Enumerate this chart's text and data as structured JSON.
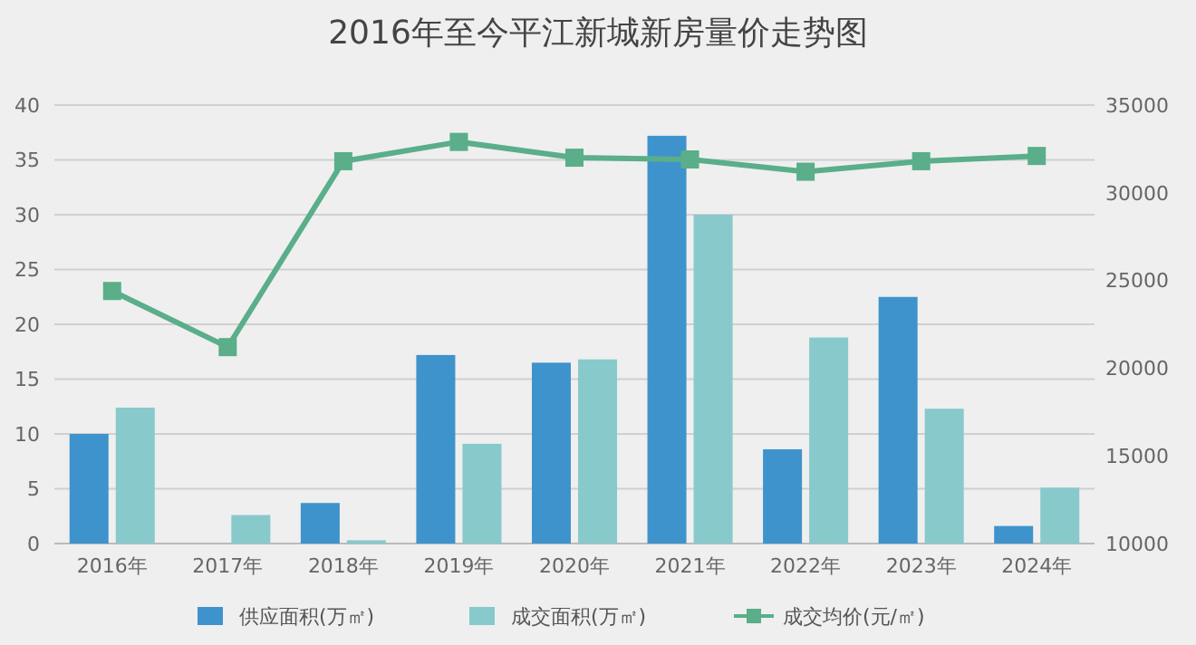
{
  "chart_data": {
    "type": "bar",
    "title": "2016年至今平江新城新房量价走势图",
    "categories": [
      "2016年",
      "2017年",
      "2018年",
      "2019年",
      "2020年",
      "2021年",
      "2022年",
      "2023年",
      "2024年"
    ],
    "series": [
      {
        "name": "供应面积(万㎡)",
        "color": "#3f93cc",
        "values": [
          10,
          null,
          3.7,
          17.2,
          16.5,
          37.2,
          8.6,
          22.5,
          1.6
        ]
      },
      {
        "name": "成交面积(万㎡)",
        "color": "#88c9cc",
        "values": [
          12.4,
          2.6,
          0.3,
          9.1,
          16.8,
          30,
          18.8,
          12.3,
          5.1
        ]
      },
      {
        "name": "成交均价(元/㎡)",
        "type": "line",
        "axis": "y2",
        "color": "#5aae8a",
        "marker": "square",
        "values": [
          24400,
          21200,
          31800,
          32900,
          32000,
          31900,
          31200,
          31800,
          32100
        ]
      }
    ],
    "ylim": [
      0,
      40
    ],
    "yticks": [
      0,
      5,
      10,
      15,
      20,
      25,
      30,
      35,
      40
    ],
    "y2lim": [
      10000,
      35000
    ],
    "y2ticks": [
      10000,
      15000,
      20000,
      25000,
      30000,
      35000
    ],
    "grid": "y",
    "legend": "bottom"
  }
}
